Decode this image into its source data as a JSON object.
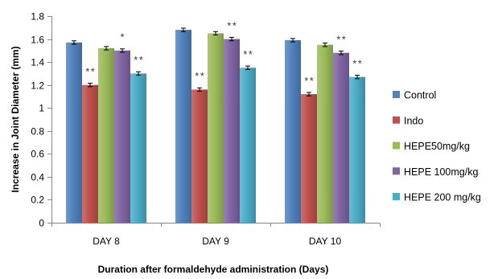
{
  "chart_data": {
    "type": "bar",
    "xlabel": "Duration after formaldehyde administration (Days)",
    "ylabel": "Increase in Joint Diameter (mm)",
    "categories": [
      "DAY 8",
      "DAY 9",
      "DAY 10"
    ],
    "ylim": [
      0,
      1.8
    ],
    "yticks": [
      0,
      0.2,
      0.4,
      0.6,
      0.8,
      1,
      1.2,
      1.4,
      1.6,
      1.8
    ],
    "ytick_labels": [
      "0",
      "0.2",
      "0.4",
      "0.6",
      "0.8",
      "1",
      "1.2",
      "1.4",
      "1.6",
      "1.8"
    ],
    "grid": false,
    "legend": "right",
    "series": [
      {
        "name": "Control",
        "color": "#4F81BD",
        "values": [
          1.57,
          1.68,
          1.59
        ],
        "errors": [
          0.015,
          0.015,
          0.015
        ]
      },
      {
        "name": "Indo",
        "color": "#C0504D",
        "values": [
          1.2,
          1.16,
          1.12
        ],
        "errors": [
          0.015,
          0.015,
          0.015
        ]
      },
      {
        "name": "HEPE50mg/kg",
        "color": "#9BBB59",
        "values": [
          1.52,
          1.65,
          1.55
        ],
        "errors": [
          0.015,
          0.015,
          0.015
        ]
      },
      {
        "name": "HEPE 100mg/kg",
        "color": "#8064A2",
        "values": [
          1.5,
          1.6,
          1.48
        ],
        "errors": [
          0.015,
          0.015,
          0.015
        ]
      },
      {
        "name": "HEPE 200 mg/kg",
        "color": "#4BACC6",
        "values": [
          1.3,
          1.35,
          1.27
        ],
        "errors": [
          0.015,
          0.015,
          0.015
        ]
      }
    ],
    "annotations": [
      {
        "category": "DAY 8",
        "series": "Indo",
        "text": "**"
      },
      {
        "category": "DAY 8",
        "series": "HEPE 100mg/kg",
        "text": "*"
      },
      {
        "category": "DAY 8",
        "series": "HEPE 200 mg/kg",
        "text": "**"
      },
      {
        "category": "DAY 9",
        "series": "Indo",
        "text": "**"
      },
      {
        "category": "DAY 9",
        "series": "HEPE 100mg/kg",
        "text": "**"
      },
      {
        "category": "DAY 9",
        "series": "HEPE 200 mg/kg",
        "text": "**"
      },
      {
        "category": "DAY 10",
        "series": "Indo",
        "text": "**"
      },
      {
        "category": "DAY 10",
        "series": "HEPE 100mg/kg",
        "text": "**"
      },
      {
        "category": "DAY 10",
        "series": "HEPE 200 mg/kg",
        "text": "**"
      }
    ]
  }
}
